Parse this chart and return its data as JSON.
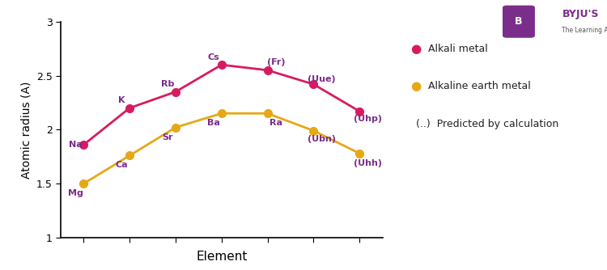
{
  "alkali_x": [
    1,
    2,
    3,
    4,
    5,
    6,
    7
  ],
  "alkali_y": [
    1.86,
    2.2,
    2.35,
    2.6,
    2.55,
    2.42,
    2.17
  ],
  "alkali_labels": [
    "Na",
    "K",
    "Rb",
    "Cs",
    "(Fr)",
    "(Uue)",
    "(Uhp)"
  ],
  "alkali_label_offsets_x": [
    -0.18,
    -0.18,
    -0.18,
    -0.18,
    0.18,
    0.18,
    0.18
  ],
  "alkali_label_offsets_y": [
    0.0,
    0.07,
    0.07,
    0.07,
    0.07,
    0.05,
    -0.07
  ],
  "alkaline_x": [
    1,
    2,
    3,
    4,
    5,
    6,
    7
  ],
  "alkaline_y": [
    1.5,
    1.76,
    2.02,
    2.15,
    2.15,
    1.99,
    1.78
  ],
  "alkaline_labels": [
    "Mg",
    "Ca",
    "Sr",
    "Ba",
    "Ra",
    "(Ubn)",
    "(Uhh)"
  ],
  "alkaline_label_offsets_x": [
    -0.18,
    -0.18,
    -0.18,
    -0.18,
    0.18,
    0.18,
    0.18
  ],
  "alkaline_label_offsets_y": [
    -0.09,
    -0.09,
    -0.09,
    -0.09,
    -0.09,
    -0.08,
    -0.09
  ],
  "alkali_color": "#D81B60",
  "alkaline_color": "#E6A817",
  "label_color": "#7B2D8B",
  "ylabel": "Atomic radius (A)",
  "xlabel": "Element",
  "ylim": [
    1.0,
    3.0
  ],
  "yticks": [
    1.0,
    1.5,
    2.0,
    2.5,
    3.0
  ],
  "ytick_labels": [
    "1",
    "1.5",
    "2",
    "2.5",
    "3"
  ],
  "legend_alkali": "Alkali metal",
  "legend_alkaline": "Alkaline earth metal",
  "legend_predicted": "(..)  Predicted by calculation",
  "marker_size": 7,
  "linewidth": 2.0,
  "fig_width": 7.5,
  "fig_height": 3.34,
  "dpi": 100
}
